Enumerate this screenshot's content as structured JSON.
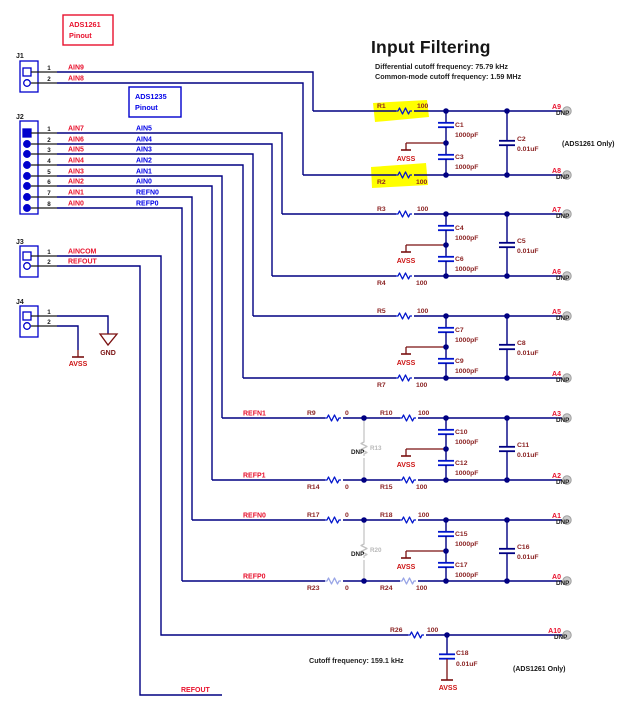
{
  "header": {
    "title": "Input Filtering",
    "subtitle1": "Differential cutoff frequency: 75.79 kHz",
    "subtitle2": "Common-mode cutoff frequency: 1.59 MHz"
  },
  "pinout_boxes": [
    {
      "device": "ADS1261",
      "label": "Pinout"
    },
    {
      "device": "ADS1235",
      "label": "Pinout"
    }
  ],
  "connectors": [
    {
      "ref": "J1",
      "pins": [
        {
          "num": "1",
          "red": "AIN9"
        },
        {
          "num": "2",
          "red": "AIN8"
        }
      ]
    },
    {
      "ref": "J2",
      "pins": [
        {
          "num": "1",
          "red": "AIN7",
          "blue": "AIN5"
        },
        {
          "num": "2",
          "red": "AIN6",
          "blue": "AIN4"
        },
        {
          "num": "3",
          "red": "AIN5",
          "blue": "AIN3"
        },
        {
          "num": "4",
          "red": "AIN4",
          "blue": "AIN2"
        },
        {
          "num": "5",
          "red": "AIN3",
          "blue": "AIN1"
        },
        {
          "num": "6",
          "red": "AIN2",
          "blue": "AIN0"
        },
        {
          "num": "7",
          "red": "AIN1",
          "blue": "REFN0"
        },
        {
          "num": "8",
          "red": "AIN0",
          "blue": "REFP0"
        }
      ]
    },
    {
      "ref": "J3",
      "pins": [
        {
          "num": "1",
          "red": "AINCOM"
        },
        {
          "num": "2",
          "red": "REFOUT"
        }
      ]
    },
    {
      "ref": "J4",
      "pins": [
        {
          "num": "1"
        },
        {
          "num": "2"
        }
      ]
    }
  ],
  "ground": {
    "gnd": "GND",
    "avss": "AVSS"
  },
  "net_stub": {
    "label": "REFOUT"
  },
  "filters": [
    {
      "out_top": "A9",
      "out_bot": "A8",
      "dnp": "DNP",
      "r_top": {
        "ref": "R1",
        "val": "100"
      },
      "r_bot": {
        "ref": "R2",
        "val": "100"
      },
      "c_top": {
        "ref": "C1",
        "val": "1000pF"
      },
      "c_bot": {
        "ref": "C3",
        "val": "1000pF"
      },
      "c_cm": {
        "ref": "C2",
        "val": "0.01uF"
      },
      "avss": "AVSS",
      "note": "(ADS1261 Only)"
    },
    {
      "out_top": "A7",
      "out_bot": "A6",
      "dnp": "DNP",
      "r_top": {
        "ref": "R3",
        "val": "100"
      },
      "r_bot": {
        "ref": "R4",
        "val": "100"
      },
      "c_top": {
        "ref": "C4",
        "val": "1000pF"
      },
      "c_bot": {
        "ref": "C6",
        "val": "1000pF"
      },
      "c_cm": {
        "ref": "C5",
        "val": "0.01uF"
      },
      "avss": "AVSS"
    },
    {
      "out_top": "A5",
      "out_bot": "A4",
      "dnp": "DNP",
      "r_top": {
        "ref": "R5",
        "val": "100"
      },
      "r_bot": {
        "ref": "R7",
        "val": "100"
      },
      "c_top": {
        "ref": "C7",
        "val": "1000pF"
      },
      "c_bot": {
        "ref": "C9",
        "val": "1000pF"
      },
      "c_cm": {
        "ref": "C8",
        "val": "0.01uF"
      },
      "avss": "AVSS"
    },
    {
      "net_top": "REFN1",
      "net_bot": "REFP1",
      "out_top": "A3",
      "out_bot": "A2",
      "dnp": "DNP",
      "r_top1": {
        "ref": "R9",
        "val": "0"
      },
      "r_top2": {
        "ref": "R10",
        "val": "100"
      },
      "r_bot1": {
        "ref": "R14",
        "val": "0"
      },
      "r_bot2": {
        "ref": "R15",
        "val": "100"
      },
      "r_dnp": {
        "ref": "R13",
        "label": "DNP"
      },
      "c_top": {
        "ref": "C10",
        "val": "1000pF"
      },
      "c_bot": {
        "ref": "C12",
        "val": "1000pF"
      },
      "c_cm": {
        "ref": "C11",
        "val": "0.01uF"
      },
      "avss": "AVSS"
    },
    {
      "net_top": "REFN0",
      "net_bot": "REFP0",
      "out_top": "A1",
      "out_bot": "A0",
      "dnp": "DNP",
      "r_top1": {
        "ref": "R17",
        "val": "0"
      },
      "r_top2": {
        "ref": "R18",
        "val": "100"
      },
      "r_bot1": {
        "ref": "R23",
        "val": "0"
      },
      "r_bot2": {
        "ref": "R24",
        "val": "100"
      },
      "r_dnp": {
        "ref": "R20",
        "label": "DNP"
      },
      "c_top": {
        "ref": "C15",
        "val": "1000pF"
      },
      "c_bot": {
        "ref": "C17",
        "val": "1000pF"
      },
      "c_cm": {
        "ref": "C16",
        "val": "0.01uF"
      },
      "avss": "AVSS"
    },
    {
      "out": "A10",
      "dnp": "DNP",
      "r": {
        "ref": "R26",
        "val": "100"
      },
      "c": {
        "ref": "C18",
        "val": "0.01uF"
      },
      "avss": "AVSS",
      "note": "(ADS1261 Only)",
      "cutoff": "Cutoff frequency: 159.1 kHz"
    }
  ],
  "colors": {
    "wire": "#000082",
    "resistor_blue": "#0014cc",
    "resistor_light": "#98a4e6",
    "cap_blue": "#0014cc",
    "cap_dark": "#000082",
    "connector_blue": "#0000cd",
    "net_red": "#e8112d",
    "net_blue": "#0000e8",
    "designator_maroon": "#8b2323",
    "ground_maroon": "#7a1010",
    "dnp_gray": "#c2c2c2",
    "pin_stub_black": "#1a1a1a",
    "highlight_yellow": "#ffff00",
    "dnp_pad_gray": "#cbcbcb"
  }
}
